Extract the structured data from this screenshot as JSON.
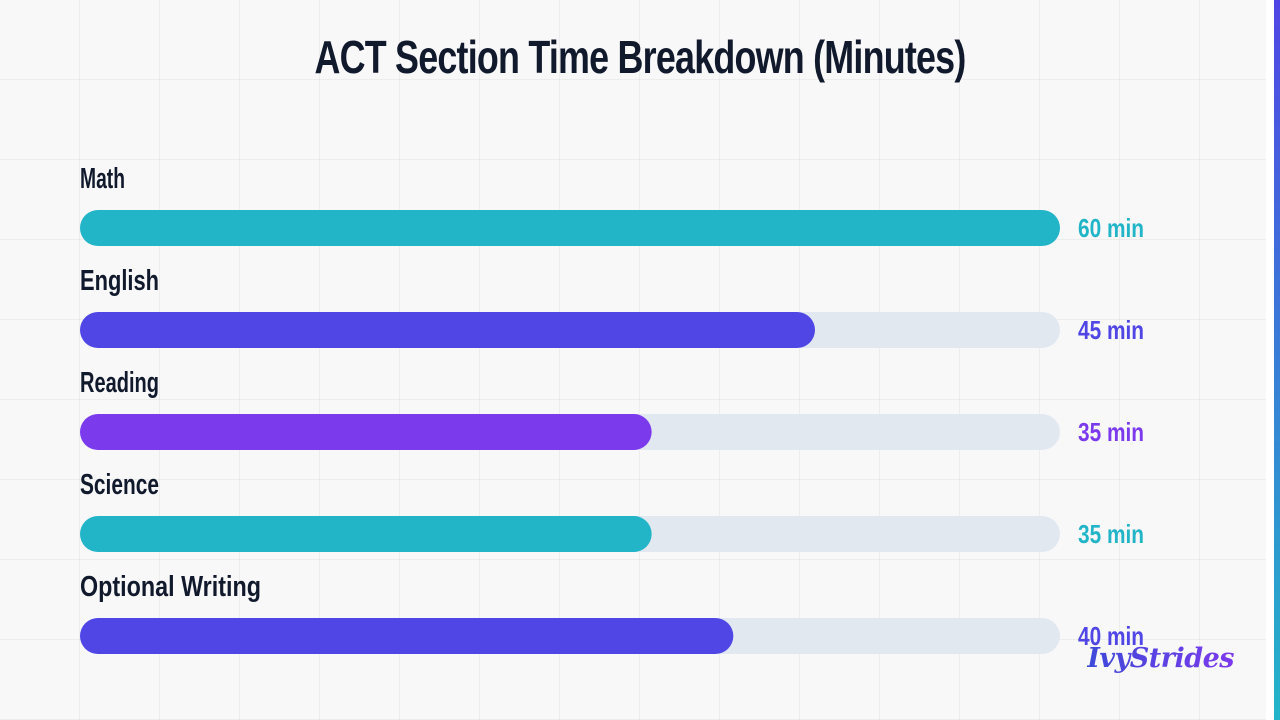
{
  "chart_data": {
    "type": "bar",
    "orientation": "horizontal",
    "title": "ACT Section Time Breakdown (Minutes)",
    "categories": [
      "Math",
      "English",
      "Reading",
      "Science",
      "Optional Writing"
    ],
    "values": [
      60,
      45,
      35,
      35,
      40
    ],
    "value_labels": [
      "60 min",
      "45 min",
      "35 min",
      "35 min",
      "40 min"
    ],
    "xlim": [
      0,
      60
    ],
    "bar_colors": [
      "#22b5c8",
      "#4f46e5",
      "#7c3aed",
      "#22b5c8",
      "#4f46e5"
    ],
    "track_color": "#e2e8f0",
    "grid": true,
    "legend": false
  },
  "branding": {
    "logo_text": "IvyStrides"
  },
  "colors": {
    "title": "#111a2c",
    "background": "#f8f8f9",
    "accent": "#4f46e5"
  }
}
